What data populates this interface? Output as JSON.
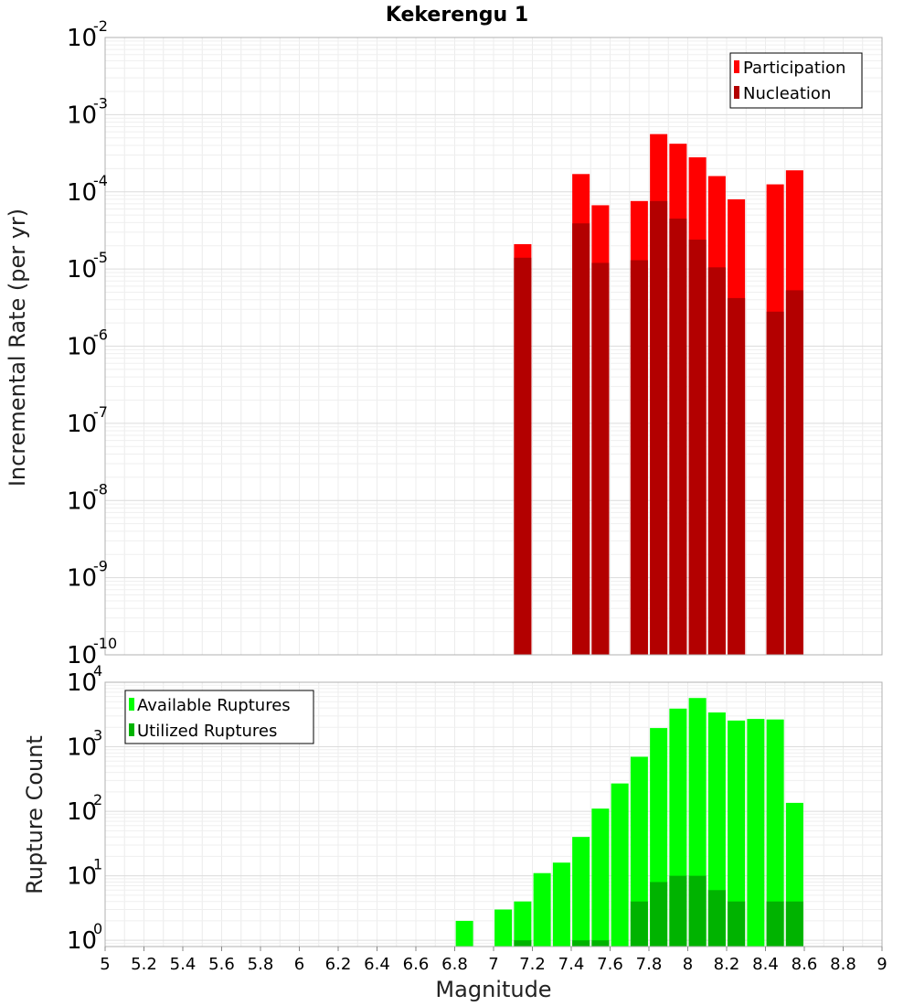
{
  "chart_data": [
    {
      "type": "bar",
      "title": "Kekerengu 1",
      "xlabel": "",
      "ylabel": "Incremental Rate (per yr)",
      "yscale": "log",
      "ylim": [
        1e-10,
        0.01
      ],
      "xlim": [
        5,
        9
      ],
      "grid": true,
      "legend_position": "top-right",
      "series": [
        {
          "name": "Participation",
          "color": "#ff0000",
          "x": [
            7.15,
            7.45,
            7.55,
            7.75,
            7.85,
            7.95,
            8.05,
            8.15,
            8.25,
            8.45,
            8.55
          ],
          "values": [
            2.1e-05,
            0.00017,
            6.7e-05,
            7.6e-05,
            0.00056,
            0.00042,
            0.00028,
            0.00016,
            8e-05,
            0.000125,
            0.00019
          ]
        },
        {
          "name": "Nucleation",
          "color": "#b30000",
          "x": [
            7.15,
            7.45,
            7.55,
            7.75,
            7.85,
            7.95,
            8.05,
            8.15,
            8.25,
            8.45,
            8.55
          ],
          "values": [
            1.4e-05,
            3.9e-05,
            1.2e-05,
            1.3e-05,
            7.6e-05,
            4.5e-05,
            2.4e-05,
            1.05e-05,
            4.2e-06,
            2.8e-06,
            5.3e-06
          ]
        }
      ],
      "yticks": [
        {
          "base": "10",
          "exp": "-10",
          "value": 1e-10
        },
        {
          "base": "10",
          "exp": "-9",
          "value": 1e-09
        },
        {
          "base": "10",
          "exp": "-8",
          "value": 1e-08
        },
        {
          "base": "10",
          "exp": "-7",
          "value": 1e-07
        },
        {
          "base": "10",
          "exp": "-6",
          "value": 1e-06
        },
        {
          "base": "10",
          "exp": "-5",
          "value": 1e-05
        },
        {
          "base": "10",
          "exp": "-4",
          "value": 0.0001
        },
        {
          "base": "10",
          "exp": "-3",
          "value": 0.001
        },
        {
          "base": "10",
          "exp": "-2",
          "value": 0.01
        }
      ]
    },
    {
      "type": "bar",
      "title": "",
      "xlabel": "Magnitude",
      "ylabel": "Rupture Count",
      "yscale": "log",
      "ylim": [
        0.8,
        10000
      ],
      "xlim": [
        5,
        9
      ],
      "grid": true,
      "legend_position": "top-left",
      "xticks": [
        "5",
        "5.2",
        "5.4",
        "5.6",
        "5.8",
        "6",
        "6.2",
        "6.4",
        "6.6",
        "6.8",
        "7",
        "7.2",
        "7.4",
        "7.6",
        "7.8",
        "8",
        "8.2",
        "8.4",
        "8.6",
        "8.8",
        "9"
      ],
      "series": [
        {
          "name": "Available Ruptures",
          "color": "#00ff00",
          "x": [
            6.85,
            7.05,
            7.15,
            7.25,
            7.35,
            7.45,
            7.55,
            7.65,
            7.75,
            7.85,
            7.95,
            8.05,
            8.15,
            8.25,
            8.35,
            8.45,
            8.55
          ],
          "values": [
            2,
            3,
            4,
            11,
            16,
            40,
            110,
            270,
            700,
            1950,
            3900,
            5700,
            3400,
            2550,
            2700,
            2650,
            135
          ]
        },
        {
          "name": "Utilized Ruptures",
          "color": "#00b300",
          "x": [
            7.15,
            7.45,
            7.55,
            7.75,
            7.85,
            7.95,
            8.05,
            8.15,
            8.25,
            8.45,
            8.55
          ],
          "values": [
            1,
            1,
            1,
            4,
            8,
            10,
            10,
            6,
            4,
            4,
            4
          ]
        }
      ],
      "yticks": [
        {
          "base": "10",
          "exp": "0",
          "value": 1
        },
        {
          "base": "10",
          "exp": "1",
          "value": 10
        },
        {
          "base": "10",
          "exp": "2",
          "value": 100
        },
        {
          "base": "10",
          "exp": "3",
          "value": 1000
        },
        {
          "base": "10",
          "exp": "4",
          "value": 10000
        }
      ]
    }
  ]
}
